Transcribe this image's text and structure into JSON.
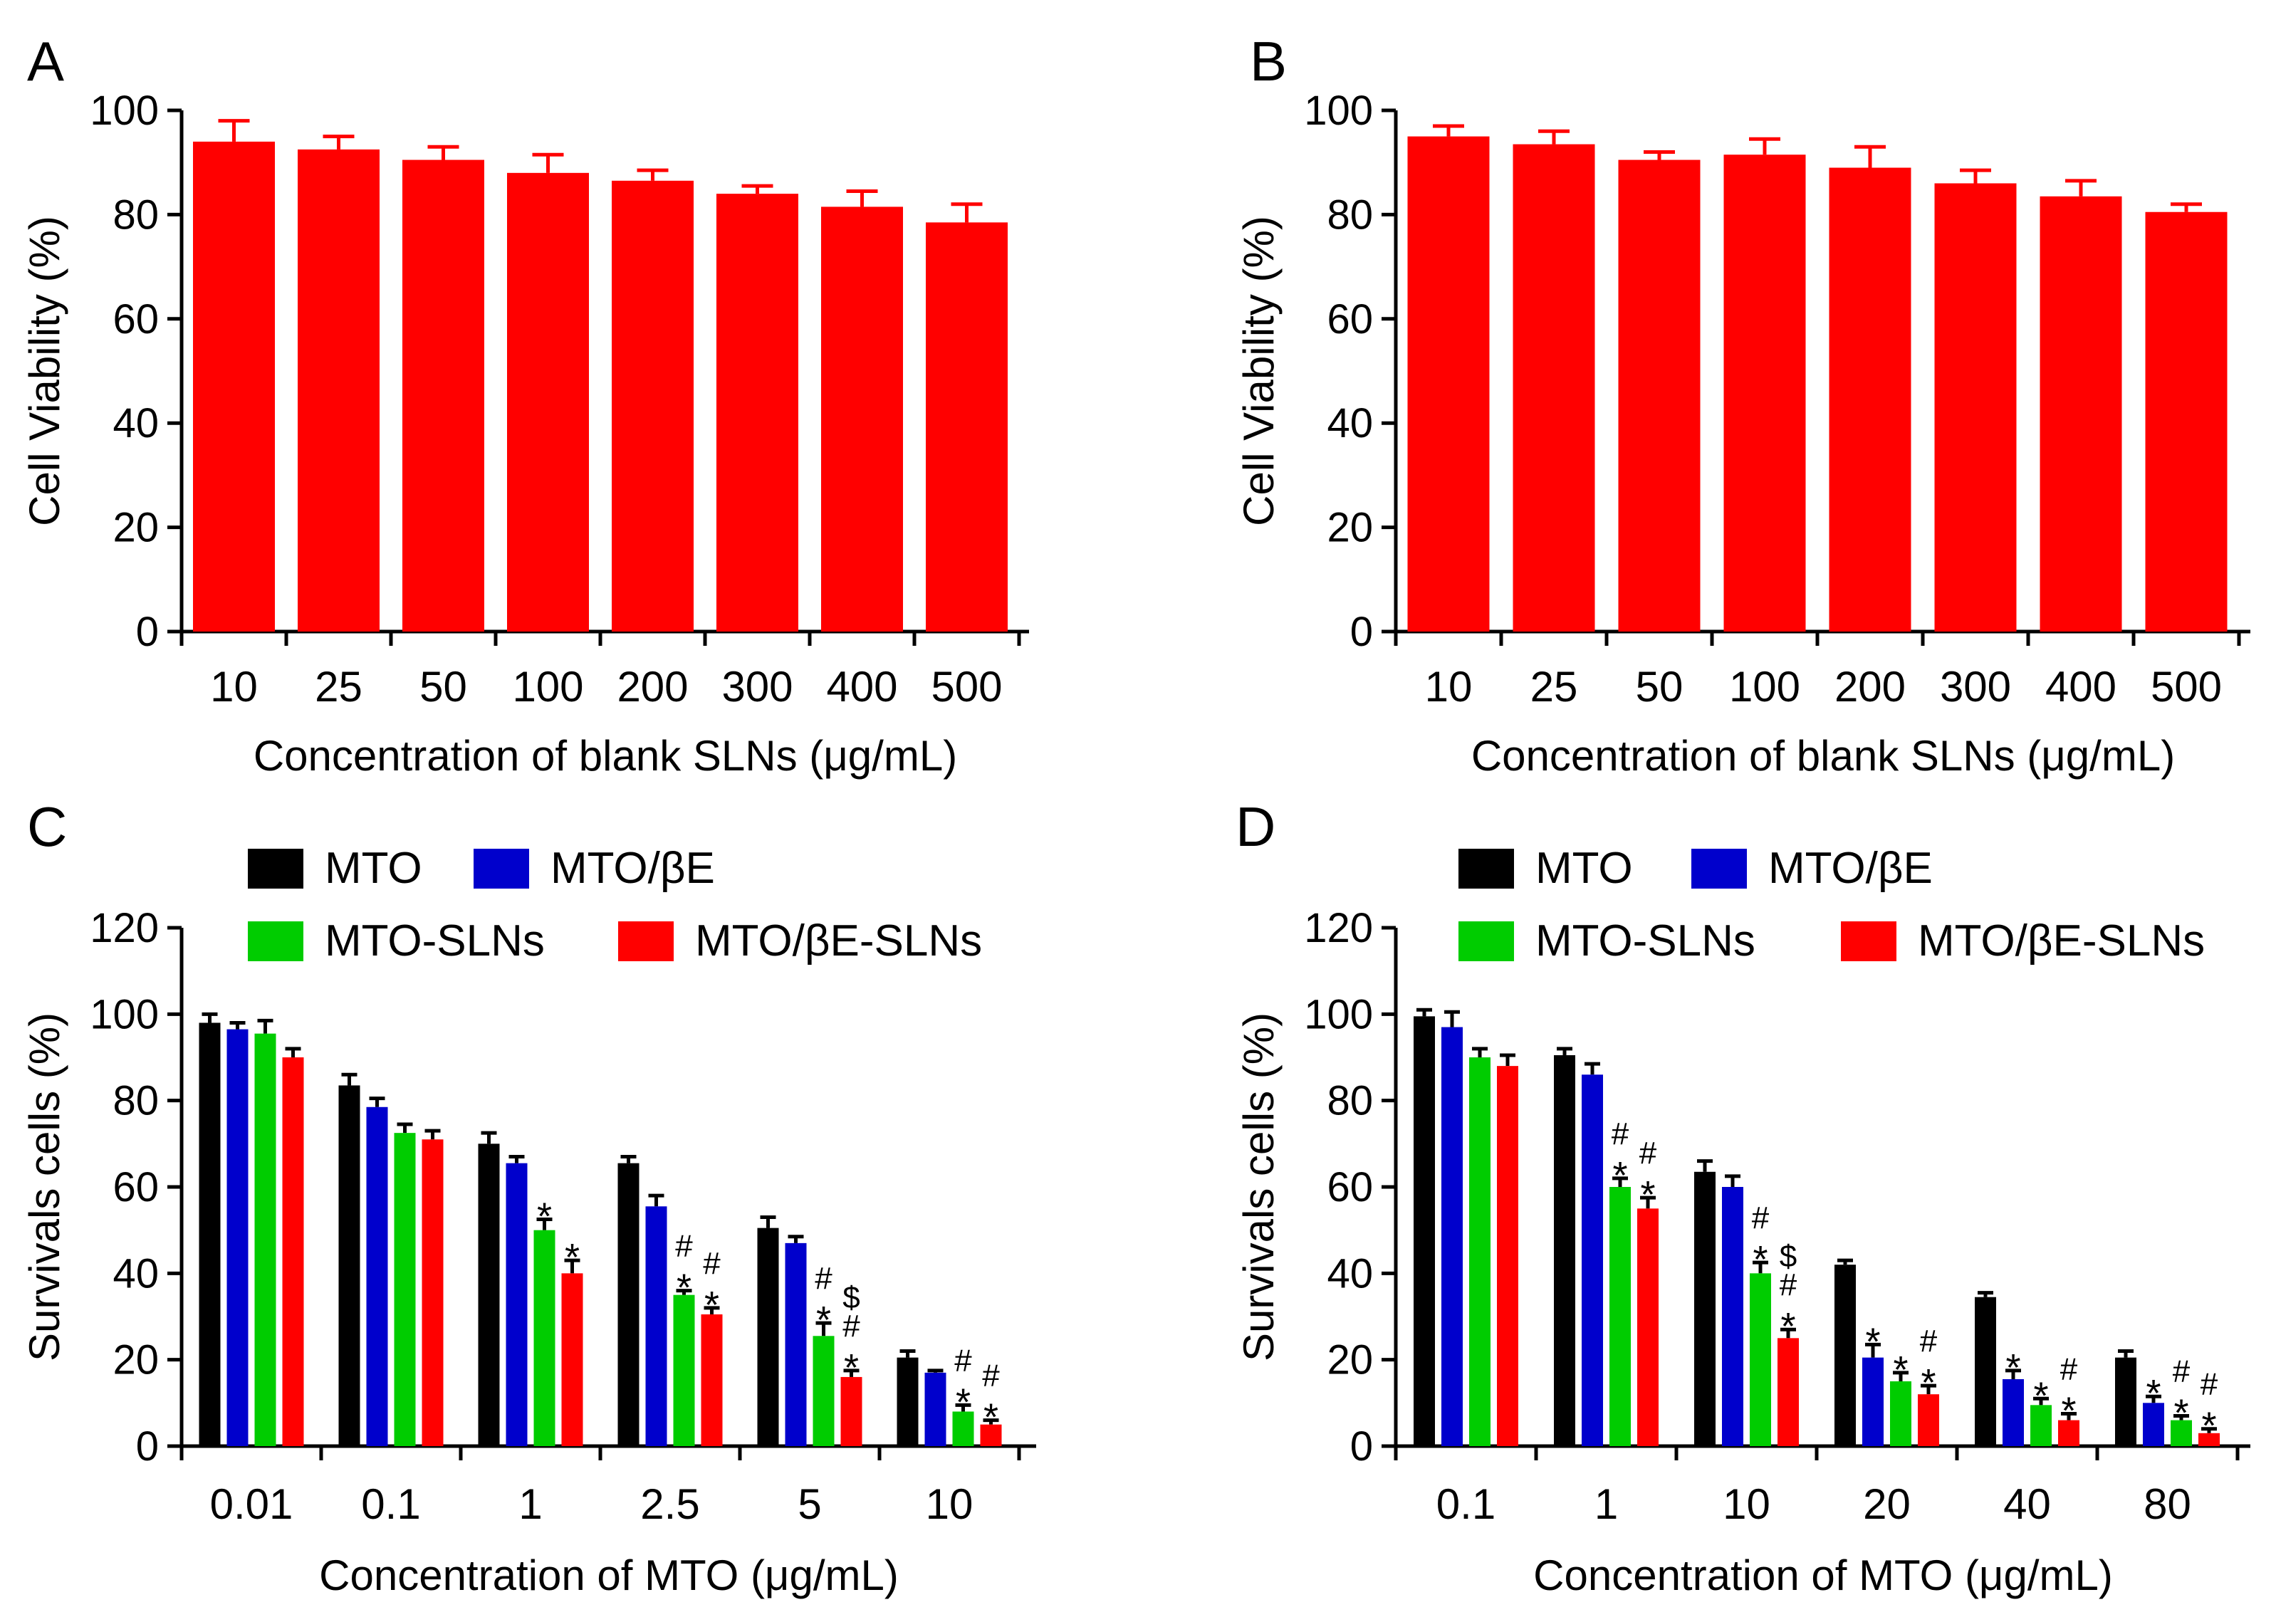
{
  "colors": {
    "axis": "#000000",
    "bar_red": "#FF0000",
    "mto": "#000000",
    "mto_be": "#0000CC",
    "mto_slns": "#00CC00",
    "mto_be_slns": "#FF0000"
  },
  "chart_data": [
    {
      "type": "bar",
      "panel": "A",
      "categories": [
        "10",
        "25",
        "50",
        "100",
        "200",
        "300",
        "400",
        "500"
      ],
      "values": [
        94,
        92.5,
        90.5,
        88,
        86.5,
        84,
        81.5,
        78.5
      ],
      "errors": [
        4,
        2.5,
        2.5,
        3.5,
        2,
        1.5,
        3,
        3.5
      ],
      "xlabel": "Concentration of blank SLNs (μg/mL)",
      "ylabel": "Cell Viability (%)",
      "ylim": [
        0,
        100
      ],
      "yticks": [
        "0",
        "20",
        "40",
        "60",
        "80",
        "100"
      ]
    },
    {
      "type": "bar",
      "panel": "B",
      "categories": [
        "10",
        "25",
        "50",
        "100",
        "200",
        "300",
        "400",
        "500"
      ],
      "values": [
        95,
        93.5,
        90.5,
        91.5,
        89,
        86,
        83.5,
        80.5
      ],
      "errors": [
        2,
        2.5,
        1.5,
        3,
        4,
        2.5,
        3,
        1.5
      ],
      "xlabel": "Concentration of blank SLNs (μg/mL)",
      "ylabel": "Cell Viability (%)",
      "ylim": [
        0,
        100
      ],
      "yticks": [
        "0",
        "20",
        "40",
        "60",
        "80",
        "100"
      ]
    },
    {
      "type": "bar",
      "panel": "C",
      "categories": [
        "0.01",
        "0.1",
        "1",
        "2.5",
        "5",
        "10"
      ],
      "series": [
        {
          "name": "MTO",
          "values": [
            98,
            83.5,
            70,
            65.5,
            50.5,
            20.5
          ],
          "errors": [
            2,
            2.5,
            2.5,
            1.5,
            2.5,
            1.5
          ]
        },
        {
          "name": "MTO/βE",
          "values": [
            96.5,
            78.5,
            65.5,
            55.5,
            47,
            17
          ],
          "errors": [
            1.5,
            2,
            1.5,
            2.5,
            1.5,
            0.5
          ]
        },
        {
          "name": "MTO-SLNs",
          "values": [
            95.5,
            72.5,
            50,
            35,
            25.5,
            8
          ],
          "errors": [
            3,
            2,
            2.5,
            1,
            3,
            1.5
          ]
        },
        {
          "name": "MTO/βE-SLNs",
          "values": [
            90,
            71,
            40,
            30.5,
            16,
            5
          ],
          "errors": [
            2,
            2,
            3,
            1.5,
            1.5,
            1
          ]
        }
      ],
      "annotations": [
        {
          "group": 2,
          "series": 2,
          "text": [
            "*"
          ]
        },
        {
          "group": 2,
          "series": 3,
          "text": [
            "*"
          ]
        },
        {
          "group": 3,
          "series": 2,
          "text": [
            "#",
            "*"
          ]
        },
        {
          "group": 3,
          "series": 3,
          "text": [
            "#",
            "*"
          ]
        },
        {
          "group": 4,
          "series": 2,
          "text": [
            "#",
            "*"
          ]
        },
        {
          "group": 4,
          "series": 3,
          "text": [
            "$",
            "#",
            "*"
          ]
        },
        {
          "group": 5,
          "series": 2,
          "text": [
            "#",
            "*"
          ]
        },
        {
          "group": 5,
          "series": 3,
          "text": [
            "#",
            "*"
          ]
        }
      ],
      "legend": [
        "MTO",
        "MTO/βE",
        "MTO-SLNs",
        "MTO/βE-SLNs"
      ],
      "xlabel": "Concentration of MTO (μg/mL)",
      "ylabel": "Survivals cells (%)",
      "ylim": [
        0,
        120
      ],
      "yticks": [
        "0",
        "20",
        "40",
        "60",
        "80",
        "100",
        "120"
      ]
    },
    {
      "type": "bar",
      "panel": "D",
      "categories": [
        "0.1",
        "1",
        "10",
        "20",
        "40",
        "80"
      ],
      "series": [
        {
          "name": "MTO",
          "values": [
            99.5,
            90.5,
            63.5,
            42,
            34.5,
            20.5
          ],
          "errors": [
            1.5,
            1.5,
            2.5,
            1,
            1,
            1.5
          ]
        },
        {
          "name": "MTO/βE",
          "values": [
            97,
            86,
            60,
            20.5,
            15.5,
            10
          ],
          "errors": [
            3.5,
            2.5,
            2.5,
            3,
            2,
            1.5
          ]
        },
        {
          "name": "MTO-SLNs",
          "values": [
            90,
            60,
            40,
            15,
            9.5,
            6
          ],
          "errors": [
            2,
            2,
            2.5,
            2,
            1.5,
            1
          ]
        },
        {
          "name": "MTO/βE-SLNs",
          "values": [
            88,
            55,
            25,
            12,
            6,
            3
          ],
          "errors": [
            2.5,
            2.5,
            2,
            2,
            1.5,
            1
          ]
        }
      ],
      "annotations": [
        {
          "group": 1,
          "series": 2,
          "text": [
            "#",
            "*"
          ]
        },
        {
          "group": 1,
          "series": 3,
          "text": [
            "#",
            "*"
          ]
        },
        {
          "group": 2,
          "series": 2,
          "text": [
            "#",
            "*"
          ]
        },
        {
          "group": 2,
          "series": 3,
          "text": [
            "$",
            "#",
            "*"
          ]
        },
        {
          "group": 3,
          "series": 1,
          "text": [
            "*"
          ]
        },
        {
          "group": 3,
          "series": 2,
          "text": [
            "*"
          ]
        },
        {
          "group": 3,
          "series": 3,
          "text": [
            "#",
            "*"
          ]
        },
        {
          "group": 4,
          "series": 1,
          "text": [
            "*"
          ]
        },
        {
          "group": 4,
          "series": 2,
          "text": [
            "*"
          ]
        },
        {
          "group": 4,
          "series": 3,
          "text": [
            "#",
            "*"
          ]
        },
        {
          "group": 5,
          "series": 1,
          "text": [
            "*"
          ]
        },
        {
          "group": 5,
          "series": 2,
          "text": [
            "#",
            "*"
          ]
        },
        {
          "group": 5,
          "series": 3,
          "text": [
            "#",
            "*"
          ]
        }
      ],
      "legend": [
        "MTO",
        "MTO/βE",
        "MTO-SLNs",
        "MTO/βE-SLNs"
      ],
      "xlabel": "Concentration of MTO (μg/mL)",
      "ylabel": "Survivals cells (%)",
      "ylim": [
        0,
        120
      ],
      "yticks": [
        "0",
        "20",
        "40",
        "60",
        "80",
        "100",
        "120"
      ]
    }
  ]
}
